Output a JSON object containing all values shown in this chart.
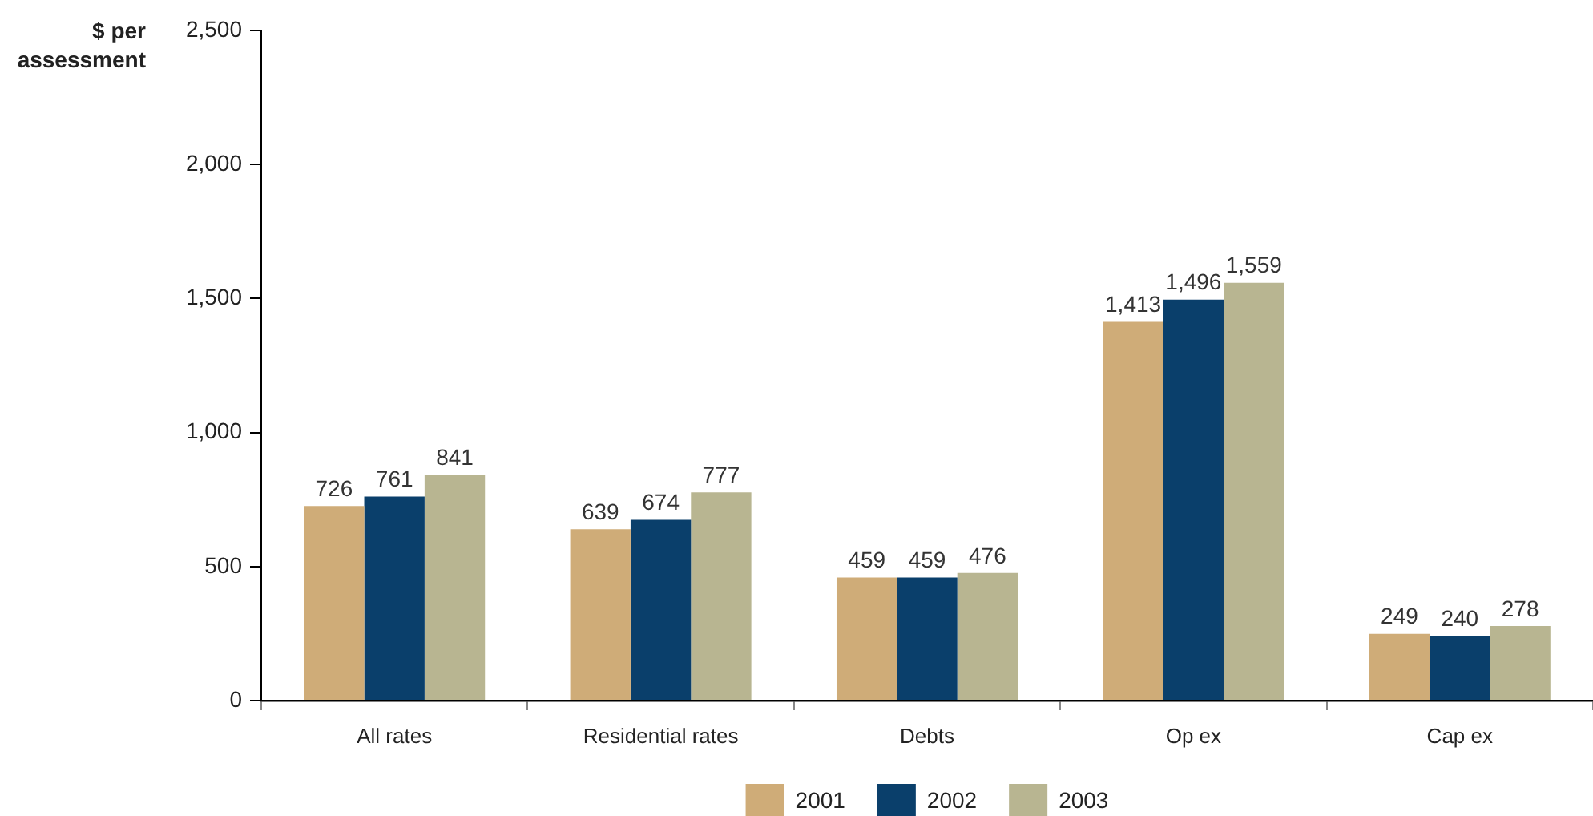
{
  "chart_data": {
    "type": "bar",
    "ylabel": "$ per assessment",
    "categories": [
      "All rates",
      "Residential rates",
      "Debts",
      "Op ex",
      "Cap ex"
    ],
    "series": [
      {
        "name": "2001",
        "color": "#cfac78",
        "values": [
          726,
          639,
          459,
          1413,
          249
        ],
        "value_labels": [
          "726",
          "639",
          "459",
          "1,413",
          "249"
        ]
      },
      {
        "name": "2002",
        "color": "#0a3f6b",
        "values": [
          761,
          674,
          459,
          1496,
          240
        ],
        "value_labels": [
          "761",
          "674",
          "459",
          "1,496",
          "240"
        ]
      },
      {
        "name": "2003",
        "color": "#b8b591",
        "values": [
          841,
          777,
          476,
          1559,
          278
        ],
        "value_labels": [
          "841",
          "777",
          "476",
          "1,559",
          "278"
        ]
      }
    ],
    "ylim": [
      0,
      2500
    ],
    "yticks": [
      {
        "value": 0,
        "label": "0"
      },
      {
        "value": 500,
        "label": "500"
      },
      {
        "value": 1000,
        "label": "1,000"
      },
      {
        "value": 1500,
        "label": "1,500"
      },
      {
        "value": 2000,
        "label": "2,000"
      },
      {
        "value": 2500,
        "label": "2,500"
      }
    ],
    "grid": false,
    "legend": "bottom"
  }
}
